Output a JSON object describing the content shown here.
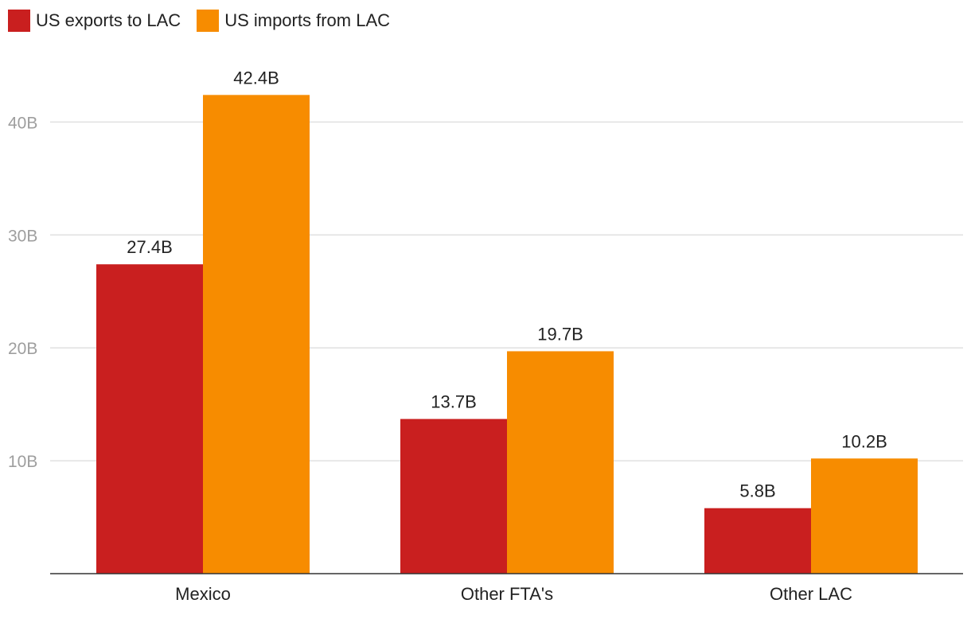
{
  "chart_data": {
    "type": "bar",
    "title": "",
    "xlabel": "",
    "ylabel": "",
    "categories": [
      "Mexico",
      "Other FTA's",
      "Other LAC"
    ],
    "series": [
      {
        "name": "US exports to LAC",
        "color": "#c91f1f",
        "values": [
          27.4,
          13.7,
          5.8
        ],
        "labels": [
          "27.4B",
          "13.7B",
          "5.8B"
        ]
      },
      {
        "name": "US imports from LAC",
        "color": "#f78c00",
        "values": [
          42.4,
          19.7,
          10.2
        ],
        "labels": [
          "42.4B",
          "19.7B",
          "10.2B"
        ]
      }
    ],
    "yticks": [
      10,
      20,
      30,
      40
    ],
    "ytick_labels": [
      "10B",
      "20B",
      "30B",
      "40B"
    ],
    "ylim": [
      0,
      48
    ],
    "grid": true,
    "legend_position": "top-left"
  }
}
